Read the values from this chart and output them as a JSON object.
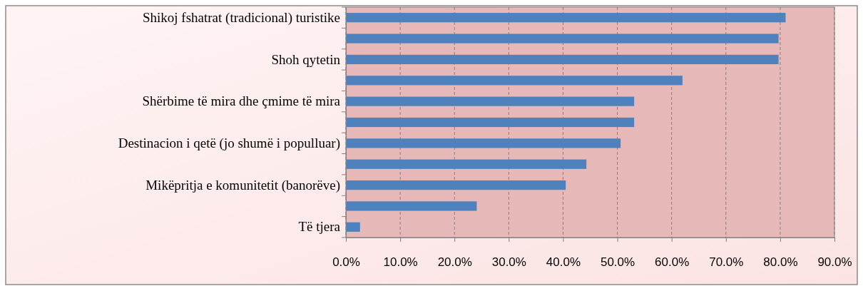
{
  "chart_data": {
    "type": "bar",
    "orientation": "horizontal",
    "categories": [
      "Shikoj fshatrat (tradicional) turistike",
      null,
      "Shoh qytetin ",
      null,
      "Shërbime të mira dhe çmime të mira",
      null,
      "Destinacion i qetë (jo shumë i populluar)",
      null,
      "Mikëpritja e komunitetit (banorëve)",
      null,
      "Të tjera"
    ],
    "values": [
      81.0,
      79.7,
      79.7,
      62.0,
      53.1,
      53.1,
      50.6,
      44.3,
      40.5,
      24.1,
      2.6
    ],
    "color": "#4f81bd",
    "xlim": [
      0,
      90
    ],
    "xticks": [
      {
        "value": 0,
        "label": "0.0%"
      },
      {
        "value": 10,
        "label": "10.0%"
      },
      {
        "value": 20,
        "label": "20.0%"
      },
      {
        "value": 30,
        "label": "30.0%"
      },
      {
        "value": 40,
        "label": "40.0%"
      },
      {
        "value": 50,
        "label": "50.0%"
      },
      {
        "value": 60,
        "label": "60.0%"
      },
      {
        "value": 70,
        "label": "70.0%"
      },
      {
        "value": 80,
        "label": "80.0%"
      },
      {
        "value": 90,
        "label": "90.0%"
      }
    ],
    "grid": "x"
  }
}
